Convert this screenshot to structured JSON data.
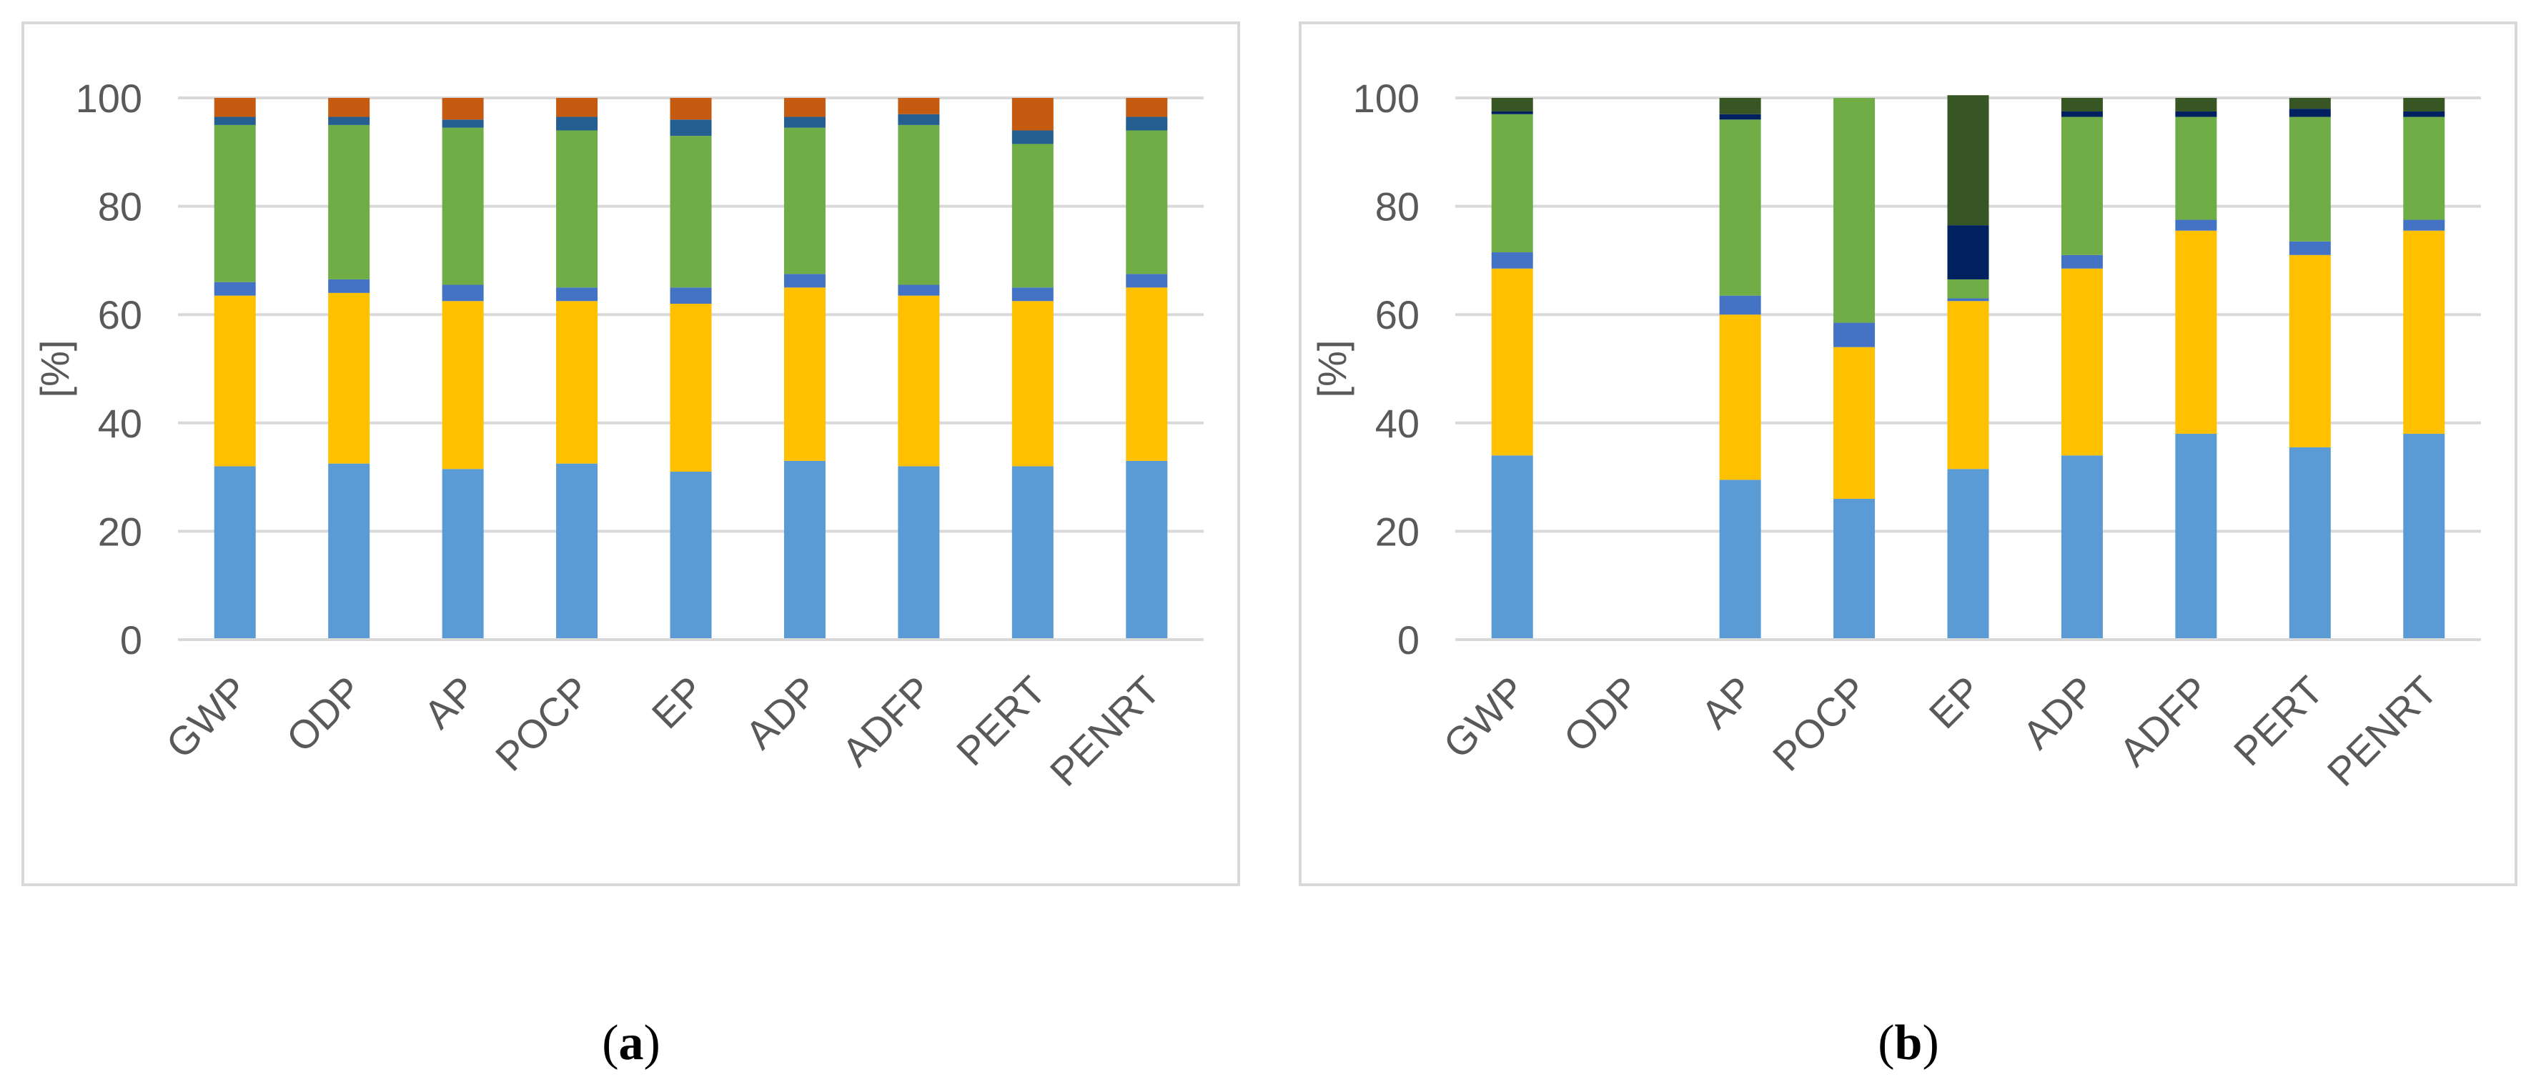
{
  "chart_data": [
    {
      "id": "a",
      "type": "bar",
      "stacked": true,
      "caption": {
        "open": "(",
        "letter": "a",
        "close": ")"
      },
      "ylabel": "[%]",
      "ylim": [
        0,
        100
      ],
      "yticks": [
        0,
        20,
        40,
        60,
        80,
        100
      ],
      "grid": true,
      "categories": [
        "GWP",
        "ODP",
        "AP",
        "POCP",
        "EP",
        "ADP",
        "ADFP",
        "PERT",
        "PENRT"
      ],
      "series": [
        {
          "name": "light blue",
          "color": "#5B9BD5",
          "values": [
            32,
            32.5,
            31.5,
            32.5,
            31,
            33,
            32,
            32,
            33
          ]
        },
        {
          "name": "gold",
          "color": "#FFC000",
          "values": [
            31.5,
            31.5,
            31,
            30,
            31,
            32,
            31.5,
            30.5,
            32
          ]
        },
        {
          "name": "blue",
          "color": "#4472C4",
          "values": [
            2.5,
            2.5,
            3,
            2.5,
            3,
            2.5,
            2,
            2.5,
            2.5
          ]
        },
        {
          "name": "green",
          "color": "#70AD47",
          "values": [
            29,
            28.5,
            29,
            29,
            28,
            27,
            29.5,
            26.5,
            26.5
          ]
        },
        {
          "name": "dark blue",
          "color": "#255E91",
          "values": [
            1.5,
            1.5,
            1.5,
            2.5,
            3,
            2,
            2,
            2.5,
            2.5
          ]
        },
        {
          "name": "brown",
          "color": "#C55A11",
          "values": [
            3.5,
            3.5,
            4,
            3.5,
            4,
            3.5,
            3,
            6,
            3.5
          ]
        }
      ]
    },
    {
      "id": "b",
      "type": "bar",
      "stacked": true,
      "caption": {
        "open": "(",
        "letter": "b",
        "close": ")"
      },
      "ylabel": "[%]",
      "ylim": [
        0,
        100
      ],
      "yticks": [
        0,
        20,
        40,
        60,
        80,
        100
      ],
      "grid": true,
      "categories": [
        "GWP",
        "ODP",
        "AP",
        "POCP",
        "EP",
        "ADP",
        "ADFP",
        "PERT",
        "PENRT"
      ],
      "series": [
        {
          "name": "light blue",
          "color": "#5B9BD5",
          "values": [
            34,
            0,
            29.5,
            26,
            31.5,
            34,
            38,
            35.5,
            38
          ]
        },
        {
          "name": "gold",
          "color": "#FFC000",
          "values": [
            34.5,
            0,
            30.5,
            28,
            31,
            34.5,
            37.5,
            35.5,
            37.5
          ]
        },
        {
          "name": "blue",
          "color": "#4472C4",
          "values": [
            3,
            0,
            3.5,
            4.5,
            0.5,
            2.5,
            2,
            2.5,
            2
          ]
        },
        {
          "name": "green",
          "color": "#70AD47",
          "values": [
            25.5,
            0,
            32.5,
            41.5,
            3.5,
            25.5,
            19,
            23,
            19
          ]
        },
        {
          "name": "navy",
          "color": "#002060",
          "values": [
            0.5,
            0,
            1,
            0,
            10,
            1,
            1,
            1.5,
            1
          ]
        },
        {
          "name": "dark green",
          "color": "#375623",
          "values": [
            2.5,
            0,
            3,
            0,
            24,
            2.5,
            2.5,
            2,
            2.5
          ]
        }
      ]
    }
  ]
}
